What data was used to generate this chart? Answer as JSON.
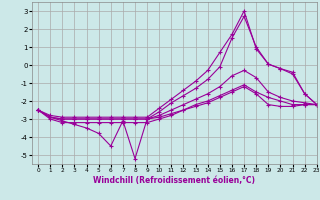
{
  "xlabel": "Windchill (Refroidissement éolien,°C)",
  "background_color": "#cce8e8",
  "grid_color": "#aaaaaa",
  "line_color": "#990099",
  "xlim": [
    -0.5,
    23
  ],
  "ylim": [
    -5.5,
    3.5
  ],
  "yticks": [
    -5,
    -4,
    -3,
    -2,
    -1,
    0,
    1,
    2,
    3
  ],
  "xticks": [
    0,
    1,
    2,
    3,
    4,
    5,
    6,
    7,
    8,
    9,
    10,
    11,
    12,
    13,
    14,
    15,
    16,
    17,
    18,
    19,
    20,
    21,
    22,
    23
  ],
  "series": [
    {
      "x": [
        0,
        1,
        2,
        3,
        4,
        5,
        6,
        7,
        8,
        9,
        10,
        11,
        12,
        13,
        14,
        15,
        16,
        17,
        18,
        19,
        20,
        21,
        22,
        23
      ],
      "y": [
        -2.5,
        -2.9,
        -3.1,
        -3.3,
        -3.5,
        -3.8,
        -4.5,
        -3.1,
        -5.2,
        -3.0,
        -2.9,
        -2.7,
        -2.5,
        -2.3,
        -2.1,
        -1.8,
        -1.5,
        -1.2,
        -1.6,
        -2.2,
        -2.3,
        -2.3,
        -2.2,
        -2.2
      ]
    },
    {
      "x": [
        0,
        1,
        2,
        3,
        4,
        5,
        6,
        7,
        8,
        9,
        10,
        11,
        12,
        13,
        14,
        15,
        16,
        17,
        18,
        19,
        20,
        21,
        22,
        23
      ],
      "y": [
        -2.5,
        -3.0,
        -3.2,
        -3.2,
        -3.2,
        -3.2,
        -3.2,
        -3.2,
        -3.2,
        -3.2,
        -3.0,
        -2.8,
        -2.5,
        -2.2,
        -2.0,
        -1.7,
        -1.4,
        -1.1,
        -1.5,
        -1.8,
        -2.0,
        -2.2,
        -2.2,
        -2.2
      ]
    },
    {
      "x": [
        0,
        1,
        2,
        3,
        4,
        5,
        6,
        7,
        8,
        9,
        10,
        11,
        12,
        13,
        14,
        15,
        16,
        17,
        18,
        19,
        20,
        21,
        22,
        23
      ],
      "y": [
        -2.5,
        -2.9,
        -3.0,
        -3.0,
        -3.0,
        -3.0,
        -3.0,
        -3.0,
        -3.0,
        -3.0,
        -2.8,
        -2.5,
        -2.2,
        -1.9,
        -1.6,
        -1.2,
        -0.6,
        -0.3,
        -0.7,
        -1.5,
        -1.8,
        -2.0,
        -2.1,
        -2.2
      ]
    },
    {
      "x": [
        0,
        1,
        2,
        3,
        4,
        5,
        6,
        7,
        8,
        9,
        10,
        11,
        12,
        13,
        14,
        15,
        16,
        17,
        18,
        19,
        20,
        21,
        22,
        23
      ],
      "y": [
        -2.5,
        -2.9,
        -3.0,
        -3.0,
        -3.0,
        -3.0,
        -3.0,
        -3.0,
        -3.0,
        -3.0,
        -2.6,
        -2.1,
        -1.7,
        -1.3,
        -0.8,
        -0.1,
        1.5,
        2.7,
        1.0,
        0.05,
        -0.2,
        -0.4,
        -1.6,
        -2.2
      ]
    },
    {
      "x": [
        0,
        1,
        2,
        3,
        4,
        5,
        6,
        7,
        8,
        9,
        10,
        11,
        12,
        13,
        14,
        15,
        16,
        17,
        18,
        19,
        20,
        21,
        22,
        23
      ],
      "y": [
        -2.5,
        -2.8,
        -2.9,
        -2.9,
        -2.9,
        -2.9,
        -2.9,
        -2.9,
        -2.9,
        -2.9,
        -2.4,
        -1.9,
        -1.4,
        -0.9,
        -0.3,
        0.7,
        1.7,
        3.0,
        0.9,
        0.05,
        -0.2,
        -0.5,
        -1.6,
        -2.2
      ]
    }
  ]
}
